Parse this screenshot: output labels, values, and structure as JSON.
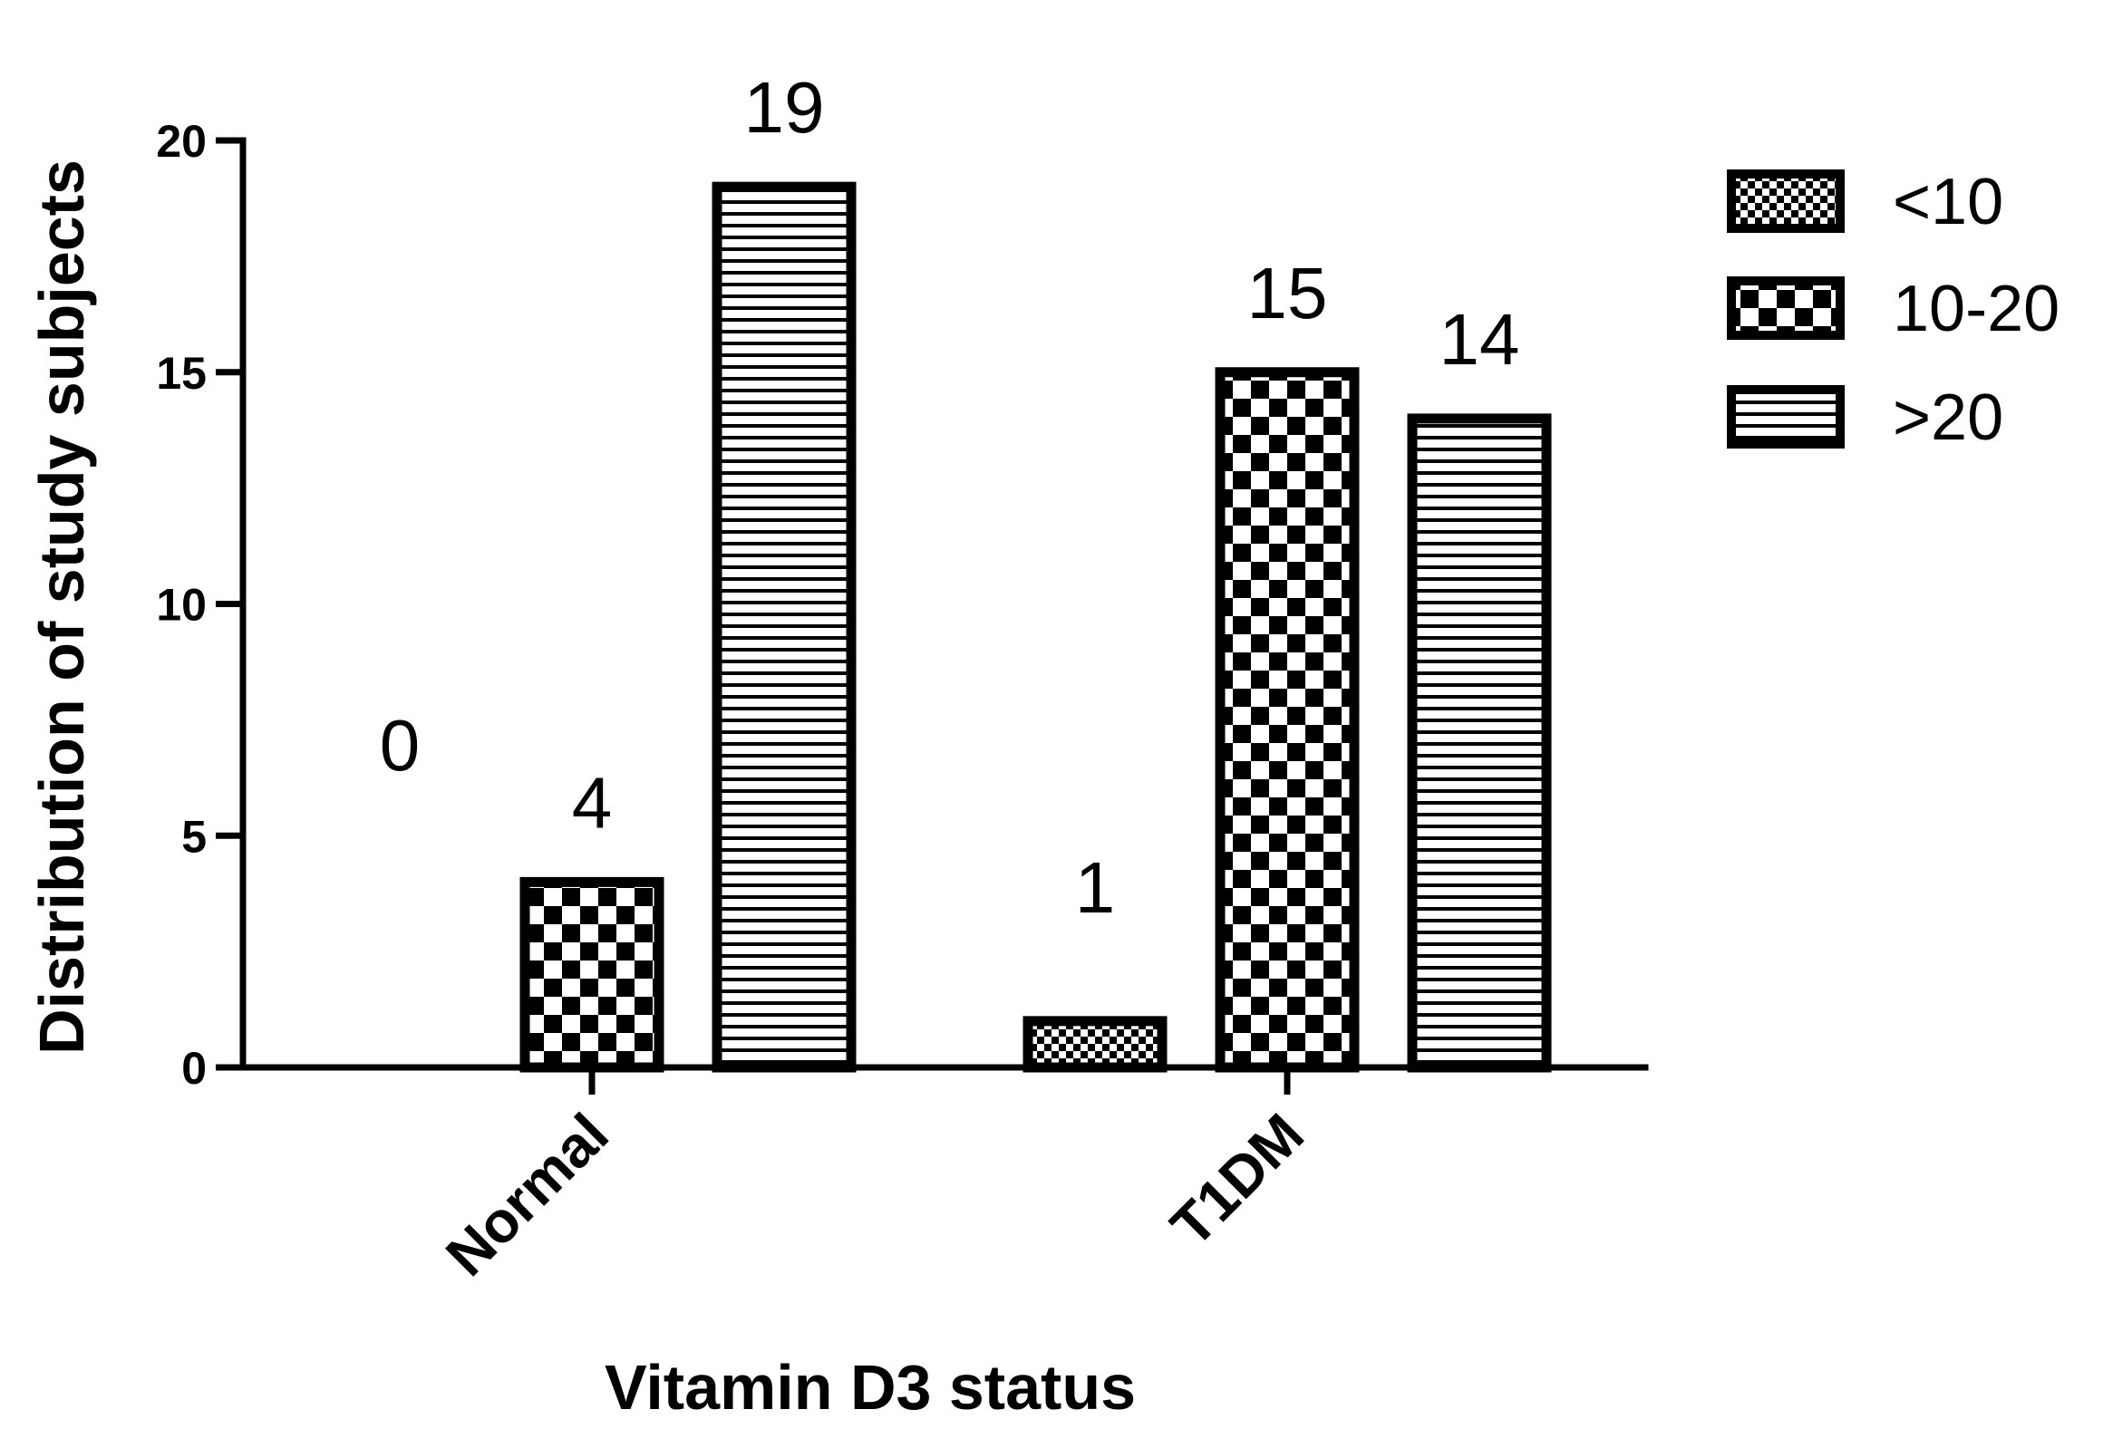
{
  "chart_data": {
    "type": "bar",
    "title": "",
    "xlabel": "Vitamin D3 status",
    "ylabel": "Distribution of study subjects",
    "categories": [
      "Normal",
      "T1DM"
    ],
    "series": [
      {
        "name": "<10",
        "values": [
          0,
          1
        ],
        "pattern": "fine-check"
      },
      {
        "name": "10-20",
        "values": [
          4,
          15
        ],
        "pattern": "coarse-check"
      },
      {
        "name": ">20",
        "values": [
          19,
          14
        ],
        "pattern": "horizontal-lines"
      }
    ],
    "data_labels": [
      [
        "0",
        "1"
      ],
      [
        "4",
        "15"
      ],
      [
        "19",
        "14"
      ]
    ],
    "ylim": [
      0,
      20
    ],
    "yticks": [
      "0",
      "5",
      "10",
      "15",
      "20"
    ],
    "grid": false,
    "legend_position": "top-right",
    "colors": {
      "ink": "#000000",
      "background": "#ffffff"
    }
  }
}
